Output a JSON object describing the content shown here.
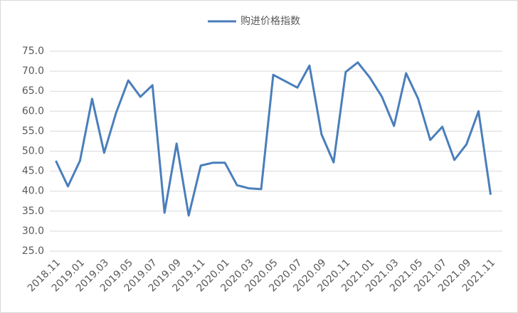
{
  "chart_data": {
    "type": "line",
    "categories": [
      "2018.11",
      null,
      "2019.01",
      null,
      "2019.03",
      null,
      "2019.05",
      null,
      "2019.07",
      null,
      "2019.09",
      null,
      "2019.11",
      null,
      "2020.01",
      null,
      "2020.03",
      null,
      "2020.05",
      null,
      "2020.07",
      null,
      "2020.09",
      null,
      "2020.11",
      null,
      "2021.01",
      null,
      "2021.03",
      null,
      "2021.05",
      null,
      "2021.07",
      null,
      "2021.09",
      null,
      "2021.11"
    ],
    "series": [
      {
        "name": "购进价格指数",
        "color": "#4a7ebb",
        "values": [
          47.6,
          41.2,
          47.6,
          63.1,
          49.6,
          59.7,
          67.7,
          63.6,
          66.5,
          34.6,
          51.9,
          33.9,
          46.4,
          47.1,
          47.1,
          41.5,
          40.7,
          40.5,
          69.1,
          67.5,
          65.9,
          71.4,
          54.2,
          47.2,
          69.8,
          72.2,
          68.4,
          63.6,
          56.3,
          69.5,
          63.1,
          52.8,
          56.1,
          47.8,
          51.7,
          60.0,
          39.1
        ]
      }
    ],
    "ylim": [
      25,
      75
    ],
    "yticks": [
      {
        "value": 25,
        "label": "25.0"
      },
      {
        "value": 30,
        "label": "30.0"
      },
      {
        "value": 35,
        "label": "35.0"
      },
      {
        "value": 40,
        "label": "40.0"
      },
      {
        "value": 45,
        "label": "45.0"
      },
      {
        "value": 50,
        "label": "50.0"
      },
      {
        "value": 55,
        "label": "55.0"
      },
      {
        "value": 60,
        "label": "60.0"
      },
      {
        "value": 65,
        "label": "65.0"
      },
      {
        "value": 70,
        "label": "70.0"
      },
      {
        "value": 75,
        "label": "75.0"
      }
    ],
    "grid": true,
    "legend": "top"
  }
}
